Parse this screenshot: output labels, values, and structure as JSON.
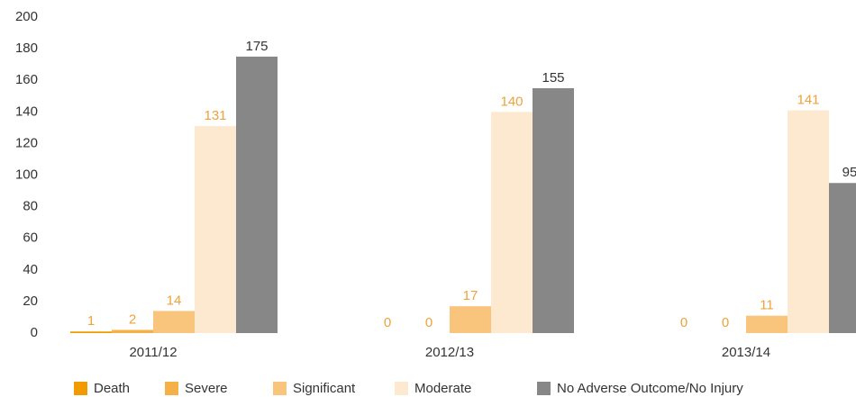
{
  "chart_data": {
    "type": "bar",
    "categories": [
      "2011/12",
      "2012/13",
      "2013/14"
    ],
    "series": [
      {
        "name": "Death",
        "color": "#f29b00",
        "values": [
          1,
          0,
          0
        ]
      },
      {
        "name": "Severe",
        "color": "#f6b04a",
        "values": [
          2,
          0,
          0
        ]
      },
      {
        "name": "Significant",
        "color": "#f9c47c",
        "values": [
          14,
          17,
          11
        ]
      },
      {
        "name": "Moderate",
        "color": "#fde9d0",
        "values": [
          131,
          140,
          141
        ]
      },
      {
        "name": "No Adverse Outcome/No Injury",
        "color": "#878787",
        "values": [
          175,
          155,
          95
        ]
      }
    ],
    "ylim": [
      0,
      200
    ],
    "yticks": [
      0,
      20,
      40,
      60,
      80,
      100,
      120,
      140,
      160,
      180,
      200
    ],
    "grid": false,
    "legend": "bottom"
  }
}
